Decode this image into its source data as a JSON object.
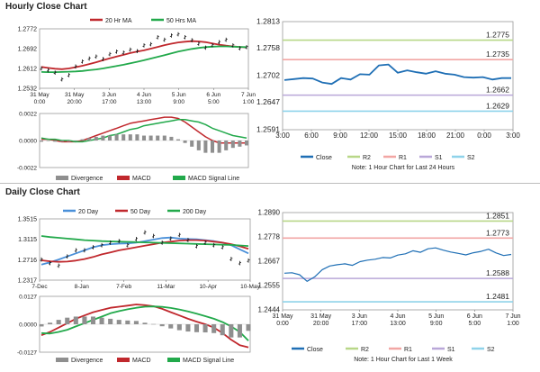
{
  "sections": {
    "hourly_title": "Hourly Close Chart",
    "daily_title": "Daily Close Chart"
  },
  "colors": {
    "close": "#1f6fb5",
    "red": "#c0282d",
    "green": "#22a94b",
    "blue_ma": "#4a90d9",
    "gray": "#8f8f8f",
    "r2": "#b8d788",
    "r1": "#f2a6a4",
    "s1": "#b9a7d8",
    "s2": "#8fd3ea"
  },
  "chart_data": [
    {
      "id": "hourly_price",
      "type": "line",
      "title": "",
      "legend": [
        "20 Hr MA",
        "50 Hrs MA"
      ],
      "legend_placement": "top",
      "x_tick_labels": [
        "31 May\n0:00",
        "31 May\n20:00",
        "3 Jun\n17:00",
        "4 Jun\n13:00",
        "5 Jun\n9:00",
        "6 Jun\n5:00",
        "7 Jun\n1:00"
      ],
      "y_ticks": [
        1.2532,
        1.2612,
        1.2692,
        1.2772
      ],
      "ylim": [
        1.2532,
        1.2772
      ],
      "series": [
        {
          "name": "20 Hr MA",
          "color": "#c0282d",
          "values": [
            1.2618,
            1.2614,
            1.2611,
            1.2609,
            1.2612,
            1.2617,
            1.2623,
            1.263,
            1.2637,
            1.2645,
            1.2653,
            1.266,
            1.2667,
            1.2674,
            1.268,
            1.2685,
            1.2692,
            1.2699,
            1.2706,
            1.2712,
            1.2717,
            1.272,
            1.2722,
            1.2721,
            1.2718,
            1.2713,
            1.2708,
            1.2704,
            1.2701,
            1.2699,
            1.2697
          ]
        },
        {
          "name": "50 Hrs MA",
          "color": "#22a94b",
          "values": [
            1.2598,
            1.2597,
            1.2597,
            1.2598,
            1.2599,
            1.26,
            1.2602,
            1.2605,
            1.2608,
            1.2612,
            1.2617,
            1.2622,
            1.2627,
            1.2633,
            1.2639,
            1.2645,
            1.2652,
            1.2659,
            1.2666,
            1.2673,
            1.268,
            1.2686,
            1.2691,
            1.2695,
            1.2698,
            1.27,
            1.2701,
            1.2701,
            1.27,
            1.2699,
            1.2698
          ]
        },
        {
          "name": "",
          "kind": "ohlc",
          "color": "#111111",
          "values": [
            1.2612,
            1.2605,
            1.2595,
            1.2568,
            1.2585,
            1.262,
            1.264,
            1.2652,
            1.266,
            1.265,
            1.267,
            1.268,
            1.2676,
            1.2688,
            1.2682,
            1.2705,
            1.271,
            1.2738,
            1.2728,
            1.2745,
            1.275,
            1.2738,
            1.2726,
            1.2712,
            1.2696,
            1.2706,
            1.2718,
            1.2728,
            1.2705,
            1.2693,
            1.2698
          ]
        }
      ]
    },
    {
      "id": "hourly_macd",
      "type": "line",
      "legend": [
        "Divergence",
        "MACD",
        "MACD Signal Line"
      ],
      "legend_placement": "bottom",
      "y_ticks": [
        -0.0022,
        0.0,
        0.0022
      ],
      "y_tick_labels": [
        "-0.0022",
        "0.0000",
        "0.0022"
      ],
      "ylim": [
        -0.0022,
        0.0022
      ],
      "series": [
        {
          "name": "MACD",
          "color": "#c0282d",
          "values": [
            0.0001,
            0.0001,
            0.0,
            -0.0001,
            -0.0001,
            -0.0001,
            0.0,
            0.0002,
            0.0004,
            0.0006,
            0.0008,
            0.001,
            0.0012,
            0.0014,
            0.0015,
            0.0016,
            0.0017,
            0.0018,
            0.0019,
            0.0019,
            0.0018,
            0.0015,
            0.0011,
            0.0007,
            0.0003,
            0.0,
            -0.0002,
            -0.0002,
            -0.0002,
            -0.0002,
            -0.0002
          ]
        },
        {
          "name": "MACD Signal Line",
          "color": "#22a94b",
          "values": [
            0.0002,
            0.0001,
            0.0001,
            0.0,
            0.0,
            -0.0001,
            -0.0001,
            0.0,
            0.0001,
            0.0002,
            0.0004,
            0.0005,
            0.0007,
            0.0009,
            0.001,
            0.0012,
            0.0013,
            0.0014,
            0.0015,
            0.0016,
            0.0017,
            0.0017,
            0.0016,
            0.0015,
            0.0013,
            0.001,
            0.0008,
            0.0006,
            0.0004,
            0.0003,
            0.0002
          ]
        },
        {
          "name": "Divergence",
          "kind": "histogram",
          "color": "#8f8f8f",
          "values": [
            -0.0001,
            0.0,
            -0.0001,
            -0.0001,
            -0.0001,
            0.0,
            0.0001,
            0.0002,
            0.0003,
            0.0004,
            0.0004,
            0.0005,
            0.0005,
            0.0005,
            0.0005,
            0.0004,
            0.0004,
            0.0004,
            0.0004,
            0.0003,
            0.0001,
            -0.0002,
            -0.0005,
            -0.0008,
            -0.001,
            -0.001,
            -0.001,
            -0.0008,
            -0.0006,
            -0.0005,
            -0.0004
          ]
        }
      ]
    },
    {
      "id": "hourly_pivot",
      "type": "line",
      "note": "Note: 1 Hour Chart for Last 24 Hours",
      "x_tick_labels": [
        "3:00",
        "6:00",
        "9:00",
        "12:00",
        "15:00",
        "18:00",
        "21:00",
        "0:00",
        "3:00"
      ],
      "y_ticks": [
        1.2591,
        1.2647,
        1.2702,
        1.2758,
        1.2813
      ],
      "ylim": [
        1.2591,
        1.2813
      ],
      "legend": [
        "Close",
        "R2",
        "R1",
        "S1",
        "S2"
      ],
      "legend_placement": "bottom",
      "levels": [
        {
          "name": "R2",
          "value": 1.2775,
          "label": "1.2775",
          "color": "#b8d788"
        },
        {
          "name": "R1",
          "value": 1.2735,
          "label": "1.2735",
          "color": "#f2a6a4"
        },
        {
          "name": "S1",
          "value": 1.2662,
          "label": "1.2662",
          "color": "#b9a7d8"
        },
        {
          "name": "S2",
          "value": 1.2629,
          "label": "1.2629",
          "color": "#8fd3ea"
        }
      ],
      "series": [
        {
          "name": "Close",
          "color": "#1f6fb5",
          "values": [
            1.2693,
            1.2695,
            1.2697,
            1.2696,
            1.2688,
            1.2685,
            1.2697,
            1.2694,
            1.2705,
            1.2704,
            1.2723,
            1.2725,
            1.2708,
            1.2713,
            1.2709,
            1.2706,
            1.2711,
            1.2706,
            1.2704,
            1.2699,
            1.2698,
            1.2699,
            1.2694,
            1.2697,
            1.2697
          ]
        }
      ]
    },
    {
      "id": "daily_price",
      "type": "line",
      "legend": [
        "20 Day",
        "50 Day",
        "200 Day"
      ],
      "legend_placement": "top",
      "x_tick_labels": [
        "7-Dec",
        "8-Jan",
        "7-Feb",
        "11-Mar",
        "10-Apr",
        "10-May"
      ],
      "y_ticks": [
        1.2317,
        1.2716,
        1.3115,
        1.3515
      ],
      "ylim": [
        1.2317,
        1.3515
      ],
      "series": [
        {
          "name": "20 Day",
          "color": "#4a90d9",
          "values": [
            1.262,
            1.2665,
            1.272,
            1.278,
            1.284,
            1.29,
            1.296,
            1.3,
            1.302,
            1.303,
            1.3035,
            1.305,
            1.308,
            1.311,
            1.314,
            1.315,
            1.313,
            1.312,
            1.3115,
            1.31,
            1.308,
            1.305,
            1.3,
            1.292,
            1.284
          ]
        },
        {
          "name": "50 Day",
          "color": "#c0282d",
          "values": [
            1.2705,
            1.2685,
            1.2675,
            1.268,
            1.27,
            1.273,
            1.277,
            1.282,
            1.286,
            1.29,
            1.293,
            1.296,
            1.299,
            1.302,
            1.305,
            1.307,
            1.309,
            1.31,
            1.31,
            1.309,
            1.307,
            1.305,
            1.302,
            1.298,
            1.293
          ]
        },
        {
          "name": "200 Day",
          "color": "#22a94b",
          "values": [
            1.318,
            1.316,
            1.3145,
            1.313,
            1.3115,
            1.31,
            1.309,
            1.308,
            1.3075,
            1.307,
            1.3065,
            1.306,
            1.3055,
            1.305,
            1.3045,
            1.304,
            1.3035,
            1.303,
            1.3025,
            1.302,
            1.3015,
            1.301,
            1.3005,
            1.2995,
            1.2985
          ]
        },
        {
          "name": "",
          "kind": "ohlc",
          "color": "#111111",
          "values": [
            1.272,
            1.265,
            1.26,
            1.278,
            1.29,
            1.29,
            1.296,
            1.3,
            1.305,
            1.308,
            1.3,
            1.312,
            1.325,
            1.318,
            1.305,
            1.313,
            1.32,
            1.31,
            1.298,
            1.305,
            1.3,
            1.296,
            1.273,
            1.265,
            1.27
          ]
        }
      ]
    },
    {
      "id": "daily_macd",
      "type": "line",
      "legend": [
        "Divergence",
        "MACD",
        "MACD Signal Line"
      ],
      "legend_placement": "bottom",
      "y_ticks": [
        -0.0127,
        0.0,
        0.0127
      ],
      "y_tick_labels": [
        "-0.0127",
        "0.0000",
        "0.0127"
      ],
      "ylim": [
        -0.0127,
        0.0127
      ],
      "series": [
        {
          "name": "MACD",
          "color": "#c0282d",
          "values": [
            -0.005,
            -0.0035,
            -0.0015,
            0.0005,
            0.0025,
            0.004,
            0.0055,
            0.0065,
            0.0075,
            0.008,
            0.0085,
            0.009,
            0.0087,
            0.0082,
            0.007,
            0.0055,
            0.004,
            0.0025,
            0.0012,
            0.0,
            -0.0015,
            -0.004,
            -0.007,
            -0.0095,
            -0.0105
          ]
        },
        {
          "name": "MACD Signal Line",
          "color": "#22a94b",
          "values": [
            -0.004,
            -0.0042,
            -0.0035,
            -0.0025,
            -0.001,
            0.0005,
            0.002,
            0.0035,
            0.005,
            0.006,
            0.0068,
            0.0075,
            0.008,
            0.0081,
            0.0079,
            0.0074,
            0.0067,
            0.0058,
            0.0048,
            0.0037,
            0.0025,
            0.001,
            -0.001,
            -0.0035,
            -0.0075
          ]
        },
        {
          "name": "Divergence",
          "kind": "histogram",
          "color": "#8f8f8f",
          "values": [
            -0.001,
            0.0007,
            0.002,
            0.003,
            0.0035,
            0.0035,
            0.0035,
            0.003,
            0.0025,
            0.002,
            0.0017,
            0.0015,
            0.0007,
            0.0001,
            -0.0009,
            -0.0019,
            -0.0027,
            -0.0033,
            -0.0036,
            -0.0037,
            -0.004,
            -0.005,
            -0.006,
            -0.006,
            -0.003
          ]
        }
      ]
    },
    {
      "id": "daily_pivot",
      "type": "line",
      "note": "Note: 1 Hour Chart for Last 1 Week",
      "x_tick_labels": [
        "31 May\n0:00",
        "31 May\n20:00",
        "3 Jun\n17:00",
        "4 Jun\n13:00",
        "5 Jun\n9:00",
        "6 Jun\n5:00",
        "7 Jun\n1:00"
      ],
      "y_ticks": [
        1.2444,
        1.2555,
        1.2667,
        1.2778,
        1.289
      ],
      "ylim": [
        1.2444,
        1.289
      ],
      "legend": [
        "Close",
        "R2",
        "R1",
        "S1",
        "S2"
      ],
      "legend_placement": "bottom",
      "levels": [
        {
          "name": "R2",
          "value": 1.2851,
          "label": "1.2851",
          "color": "#b8d788"
        },
        {
          "name": "R1",
          "value": 1.2773,
          "label": "1.2773",
          "color": "#f2a6a4"
        },
        {
          "name": "S1",
          "value": 1.2588,
          "label": "1.2588",
          "color": "#b9a7d8"
        },
        {
          "name": "S2",
          "value": 1.2481,
          "label": "1.2481",
          "color": "#8fd3ea"
        }
      ],
      "series": [
        {
          "name": "Close",
          "color": "#1f6fb5",
          "values": [
            1.2612,
            1.2614,
            1.2605,
            1.2575,
            1.2595,
            1.2628,
            1.2645,
            1.2651,
            1.2655,
            1.2648,
            1.2665,
            1.2672,
            1.2676,
            1.2684,
            1.2682,
            1.2695,
            1.2701,
            1.2715,
            1.2708,
            1.2724,
            1.2728,
            1.2718,
            1.2709,
            1.2703,
            1.2696,
            1.2706,
            1.2712,
            1.2722,
            1.2705,
            1.2693,
            1.2698
          ]
        }
      ]
    }
  ]
}
